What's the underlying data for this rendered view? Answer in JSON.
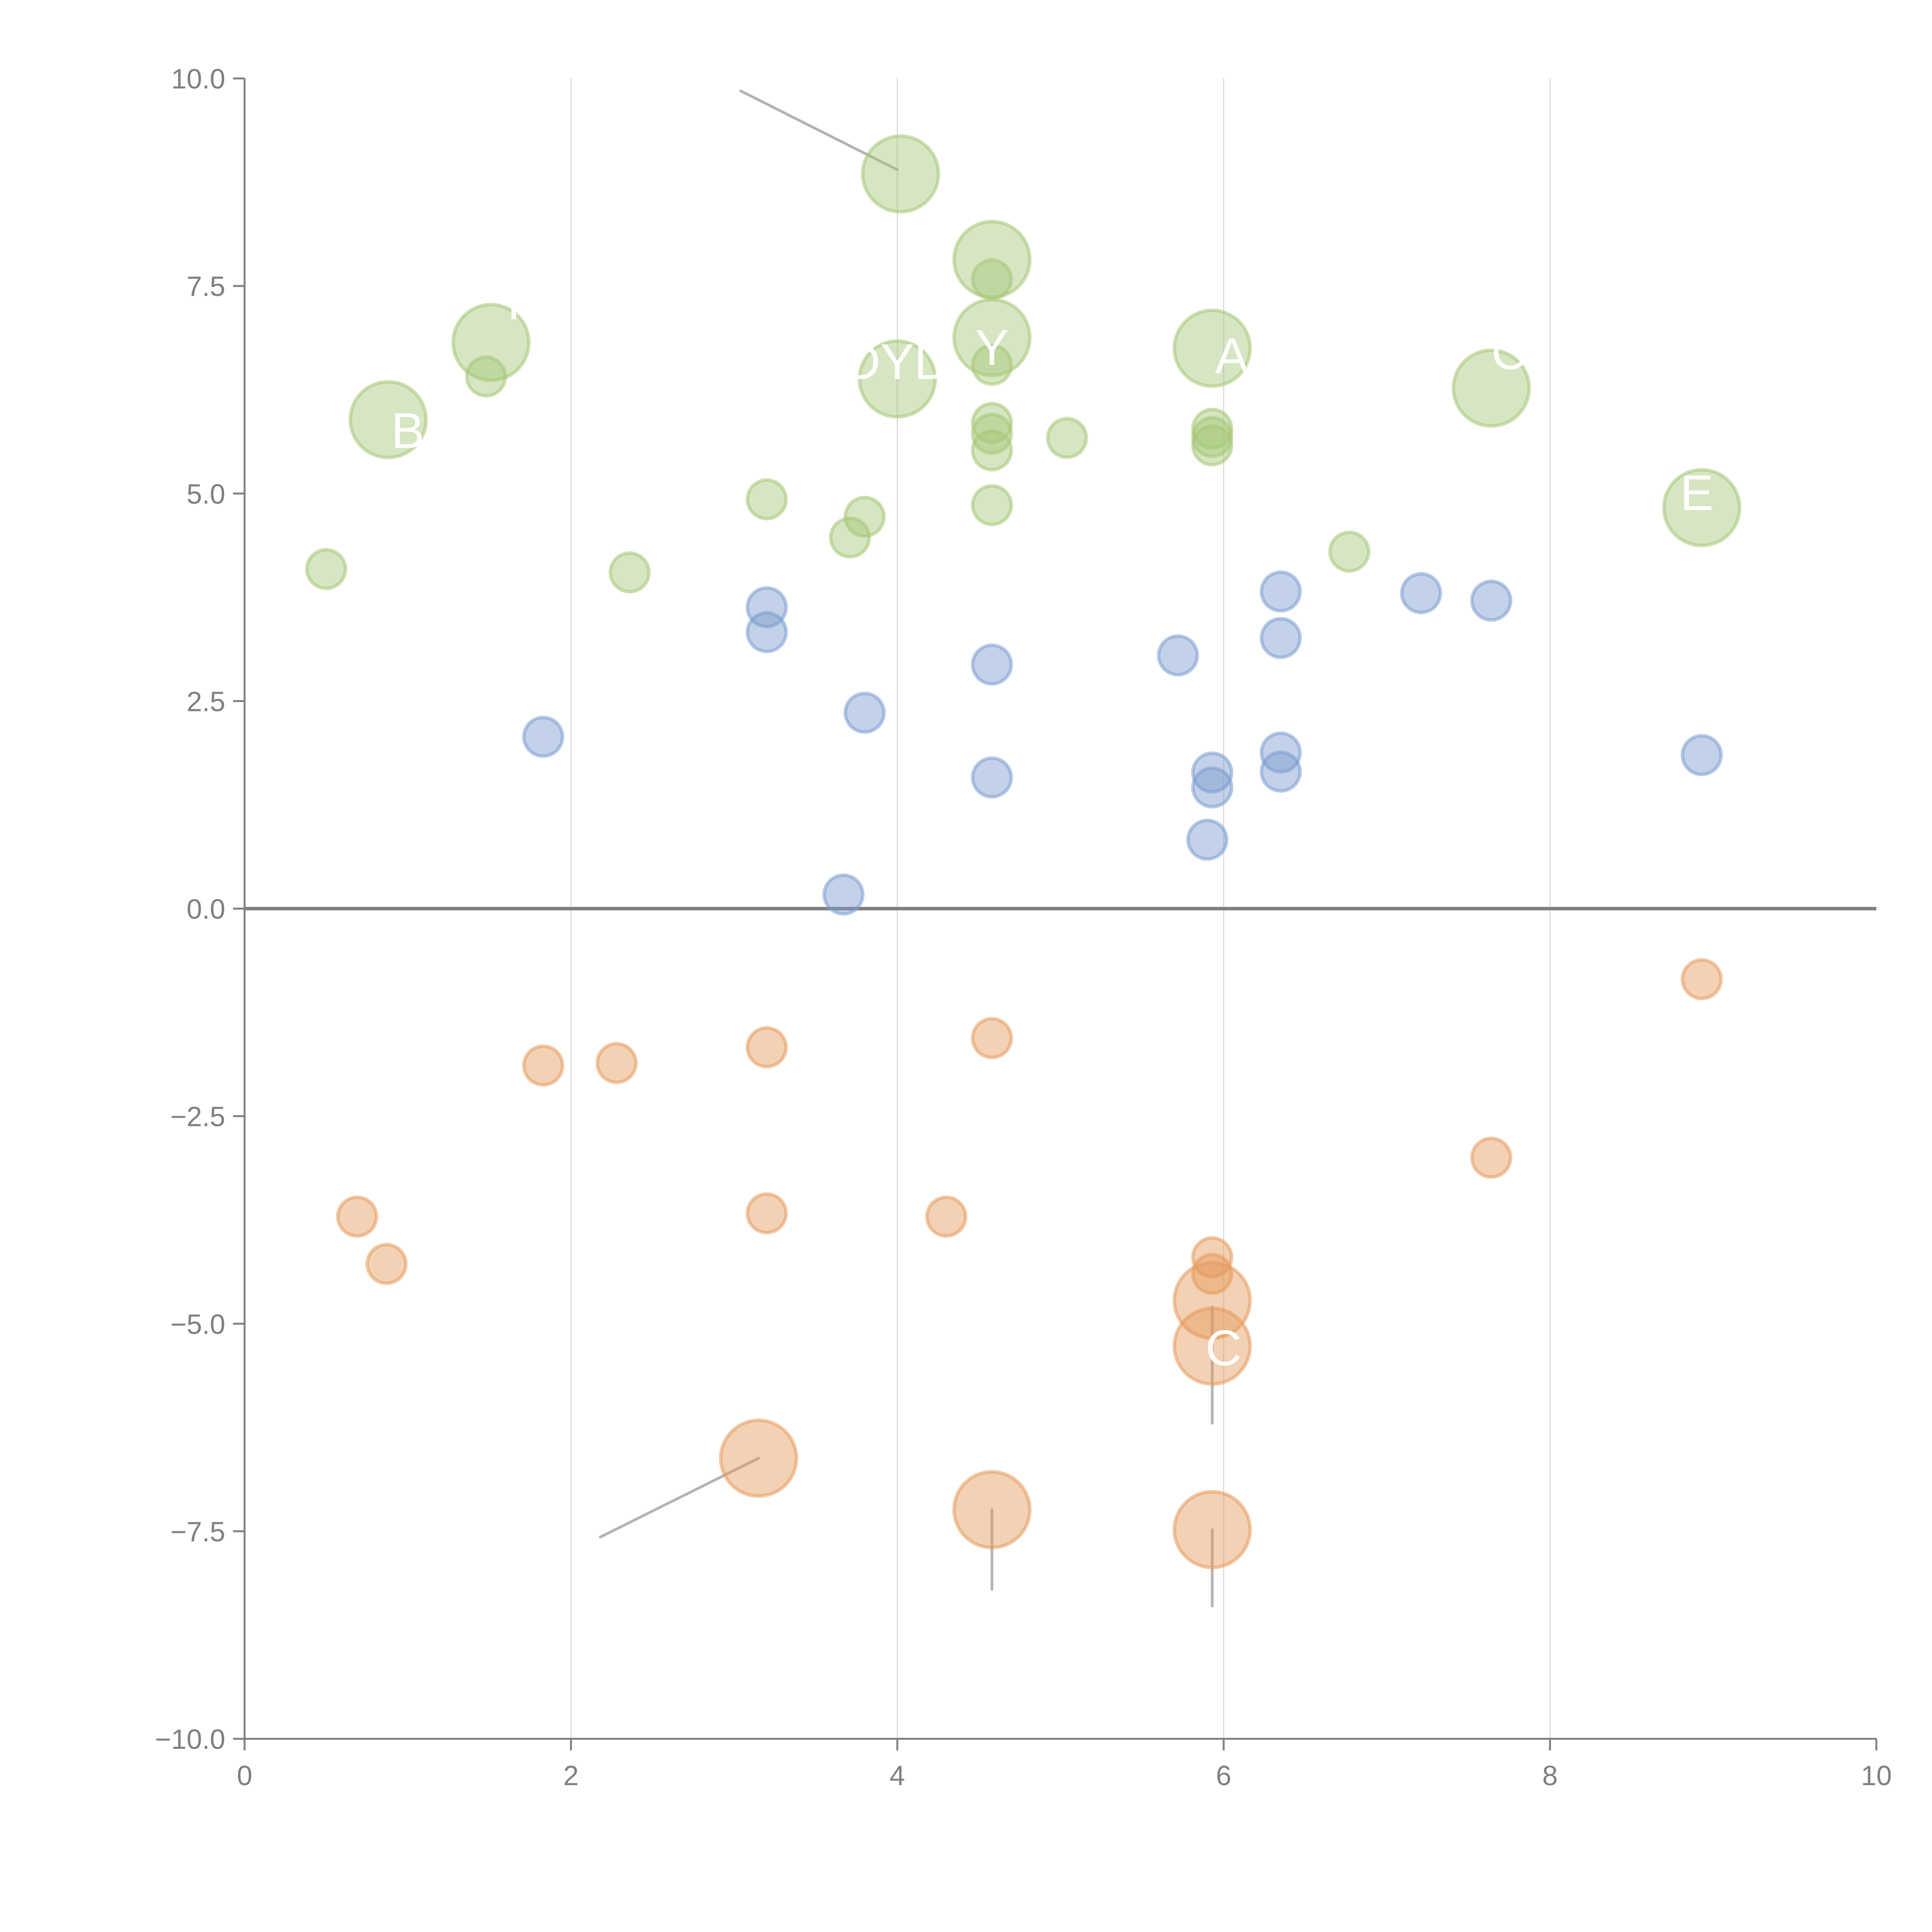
{
  "chart_data": {
    "type": "scatter",
    "title": "",
    "xlabel": "",
    "ylabel": "",
    "xlim": [
      0,
      10
    ],
    "ylim": [
      -10,
      10
    ],
    "x_ticks": [
      "0",
      "2",
      "4",
      "6",
      "8",
      "10"
    ],
    "y_ticks": [
      "10.0",
      "7.5",
      "5.0",
      "2.5",
      "0.0",
      "−2.5",
      "−5.0",
      "−7.5",
      "−10.0"
    ],
    "x_tick_values": [
      0,
      2,
      4,
      6,
      8,
      10
    ],
    "y_tick_values": [
      10,
      7.5,
      5,
      2.5,
      0,
      -2.5,
      -5,
      -7.5,
      -10
    ],
    "grid": "vertical",
    "zero_line": true,
    "legend": "none",
    "colors": {
      "green": "#a5c777",
      "blue": "#7b9ccf",
      "orange": "#e59a5c",
      "axis": "#808080",
      "grid": "#d9d9d9",
      "leader": "#b3b3b3",
      "label": "#ffffff"
    },
    "series": [
      {
        "name": "green",
        "color": "#a5c777",
        "points": [
          {
            "x": 4.02,
            "y": 8.85,
            "size": "large"
          },
          {
            "x": 4.58,
            "y": 7.82,
            "size": "large"
          },
          {
            "x": 4.58,
            "y": 7.58,
            "size": "small"
          },
          {
            "x": 4.58,
            "y": 6.88,
            "size": "large"
          },
          {
            "x": 4.58,
            "y": 6.55,
            "size": "small"
          },
          {
            "x": 1.51,
            "y": 6.82,
            "size": "large"
          },
          {
            "x": 1.48,
            "y": 6.41,
            "size": "small"
          },
          {
            "x": 4.0,
            "y": 6.38,
            "size": "large"
          },
          {
            "x": 5.93,
            "y": 6.75,
            "size": "large"
          },
          {
            "x": 7.64,
            "y": 6.27,
            "size": "large"
          },
          {
            "x": 0.88,
            "y": 5.89,
            "size": "large"
          },
          {
            "x": 4.58,
            "y": 5.85,
            "size": "small"
          },
          {
            "x": 4.58,
            "y": 5.72,
            "size": "small"
          },
          {
            "x": 4.58,
            "y": 5.52,
            "size": "small"
          },
          {
            "x": 5.04,
            "y": 5.67,
            "size": "small"
          },
          {
            "x": 5.93,
            "y": 5.78,
            "size": "small"
          },
          {
            "x": 5.93,
            "y": 5.68,
            "size": "small"
          },
          {
            "x": 5.93,
            "y": 5.58,
            "size": "small"
          },
          {
            "x": 3.2,
            "y": 4.93,
            "size": "small"
          },
          {
            "x": 3.8,
            "y": 4.72,
            "size": "small"
          },
          {
            "x": 3.71,
            "y": 4.47,
            "size": "small"
          },
          {
            "x": 4.58,
            "y": 4.86,
            "size": "small"
          },
          {
            "x": 8.93,
            "y": 4.83,
            "size": "large"
          },
          {
            "x": 6.77,
            "y": 4.3,
            "size": "small"
          },
          {
            "x": 0.5,
            "y": 4.09,
            "size": "small"
          },
          {
            "x": 2.36,
            "y": 4.05,
            "size": "small"
          }
        ]
      },
      {
        "name": "blue",
        "color": "#7b9ccf",
        "points": [
          {
            "x": 3.2,
            "y": 3.63,
            "size": "small"
          },
          {
            "x": 3.2,
            "y": 3.33,
            "size": "small"
          },
          {
            "x": 6.35,
            "y": 3.82,
            "size": "small"
          },
          {
            "x": 7.21,
            "y": 3.8,
            "size": "small"
          },
          {
            "x": 7.64,
            "y": 3.71,
            "size": "small"
          },
          {
            "x": 6.35,
            "y": 3.26,
            "size": "small"
          },
          {
            "x": 5.72,
            "y": 3.05,
            "size": "small"
          },
          {
            "x": 4.58,
            "y": 2.94,
            "size": "small"
          },
          {
            "x": 3.8,
            "y": 2.36,
            "size": "small"
          },
          {
            "x": 1.83,
            "y": 2.07,
            "size": "small"
          },
          {
            "x": 6.35,
            "y": 1.88,
            "size": "small"
          },
          {
            "x": 6.35,
            "y": 1.65,
            "size": "small"
          },
          {
            "x": 8.93,
            "y": 1.85,
            "size": "small"
          },
          {
            "x": 5.93,
            "y": 1.64,
            "size": "small"
          },
          {
            "x": 5.93,
            "y": 1.46,
            "size": "small"
          },
          {
            "x": 4.58,
            "y": 1.58,
            "size": "small"
          },
          {
            "x": 5.9,
            "y": 0.83,
            "size": "small"
          },
          {
            "x": 3.67,
            "y": 0.17,
            "size": "small"
          }
        ]
      },
      {
        "name": "orange",
        "color": "#e59a5c",
        "points": [
          {
            "x": 8.93,
            "y": -0.85,
            "size": "small"
          },
          {
            "x": 4.58,
            "y": -1.56,
            "size": "small"
          },
          {
            "x": 3.2,
            "y": -1.67,
            "size": "small"
          },
          {
            "x": 1.83,
            "y": -1.89,
            "size": "small"
          },
          {
            "x": 2.28,
            "y": -1.86,
            "size": "small"
          },
          {
            "x": 7.64,
            "y": -3.0,
            "size": "small"
          },
          {
            "x": 0.69,
            "y": -3.71,
            "size": "small"
          },
          {
            "x": 3.2,
            "y": -3.67,
            "size": "small"
          },
          {
            "x": 4.3,
            "y": -3.71,
            "size": "small"
          },
          {
            "x": 0.87,
            "y": -4.28,
            "size": "small"
          },
          {
            "x": 5.93,
            "y": -4.2,
            "size": "small"
          },
          {
            "x": 5.93,
            "y": -4.4,
            "size": "small"
          },
          {
            "x": 5.93,
            "y": -4.72,
            "size": "large"
          },
          {
            "x": 5.93,
            "y": -5.27,
            "size": "large"
          },
          {
            "x": 3.15,
            "y": -6.62,
            "size": "large"
          },
          {
            "x": 4.58,
            "y": -7.24,
            "size": "large"
          },
          {
            "x": 5.93,
            "y": -7.48,
            "size": "large"
          }
        ]
      }
    ],
    "annotations": [
      {
        "text": "DYD",
        "x": 4.0,
        "y": 6.38
      },
      {
        "text": "Y",
        "x": 4.58,
        "y": 6.55
      },
      {
        "text": "A",
        "x": 6.05,
        "y": 6.45
      },
      {
        "text": "C",
        "x": 7.75,
        "y": 6.5
      },
      {
        "text": "E",
        "x": 8.9,
        "y": 4.8
      },
      {
        "text": "B",
        "x": 1.0,
        "y": 5.55
      },
      {
        "text": "I",
        "x": 1.65,
        "y": 7.1
      },
      {
        "text": "C",
        "x": 6.0,
        "y": -5.5
      }
    ],
    "leader_lines": [
      {
        "from": [
          4.0,
          8.9
        ],
        "to": [
          3.04,
          9.85
        ],
        "color": "#b3b3b3"
      },
      {
        "from": [
          3.15,
          -6.62
        ],
        "to": [
          2.18,
          -7.57
        ],
        "color": "#b3b3b3"
      },
      {
        "from": [
          4.58,
          -7.24
        ],
        "to": [
          4.58,
          -8.2
        ],
        "color": "#b3b3b3"
      },
      {
        "from": [
          5.93,
          -7.48
        ],
        "to": [
          5.93,
          -8.4
        ],
        "color": "#b3b3b3"
      },
      {
        "from": [
          5.93,
          -4.8
        ],
        "to": [
          5.93,
          -6.2
        ],
        "color": "#b3b3b3"
      },
      {
        "from": [
          4.58,
          7.9
        ],
        "to": [
          4.8,
          8.2
        ],
        "color": "#ffffff"
      },
      {
        "from": [
          1.54,
          6.85
        ],
        "to": [
          1.75,
          7.1
        ],
        "color": "#ffffff"
      },
      {
        "from": [
          4.58,
          6.9
        ],
        "to": [
          4.1,
          6.75
        ],
        "color": "#ffffff"
      },
      {
        "from": [
          7.64,
          6.3
        ],
        "to": [
          7.8,
          6.55
        ],
        "color": "#ffffff"
      },
      {
        "from": [
          4.0,
          6.4
        ],
        "to": [
          3.85,
          6.05
        ],
        "color": "#ffffff"
      }
    ]
  }
}
